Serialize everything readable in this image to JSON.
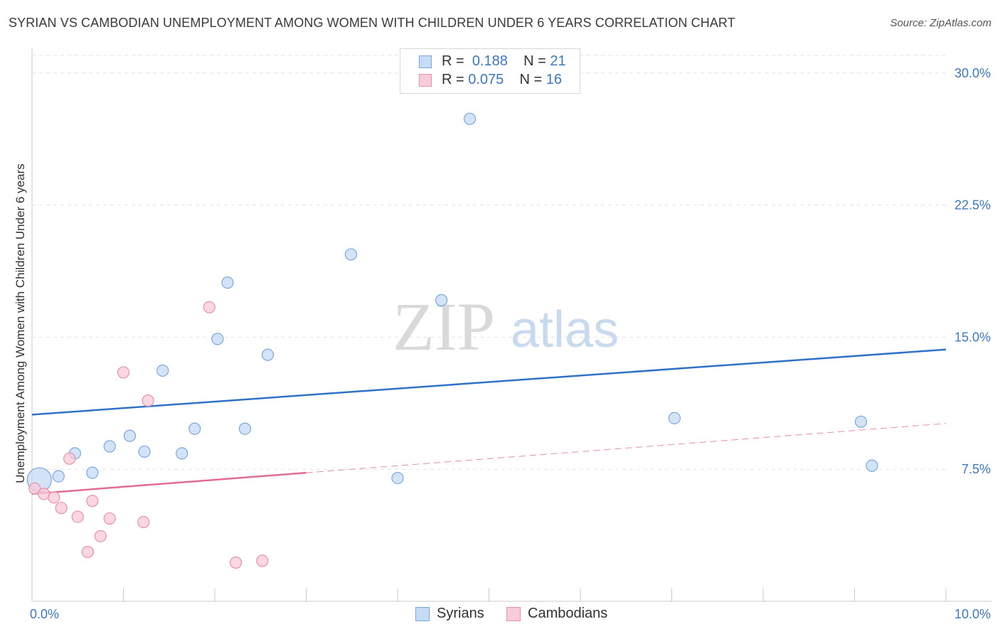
{
  "title": "SYRIAN VS CAMBODIAN UNEMPLOYMENT AMONG WOMEN WITH CHILDREN UNDER 6 YEARS CORRELATION CHART",
  "source": "Source: ZipAtlas.com",
  "watermark": {
    "zip": "ZIP",
    "atlas": "atlas"
  },
  "stats": {
    "syrians": {
      "r_label": "R =",
      "r_value": "0.188",
      "n_label": "N =",
      "n_value": "21"
    },
    "cambodians": {
      "r_label": "R =",
      "r_value": "0.075",
      "n_label": "N =",
      "n_value": "16"
    }
  },
  "legend": {
    "syrians": "Syrians",
    "cambodians": "Cambodians"
  },
  "colors": {
    "syrians_fill": "#c6dbf5",
    "syrians_stroke": "#7aa7dc",
    "syrians_line": "#2f72c8",
    "cambodians_fill": "#f9cad8",
    "cambodians_stroke": "#e891ad",
    "cambodians_line": "#e06d97",
    "grid": "#e3e3e3",
    "axis_text": "#3b78c4"
  },
  "chart_data": {
    "type": "scatter",
    "title": "SYRIAN VS CAMBODIAN UNEMPLOYMENT AMONG WOMEN WITH CHILDREN UNDER 6 YEARS CORRELATION CHART",
    "xlabel": "",
    "ylabel": "Unemployment Among Women with Children Under 6 years",
    "xlim": [
      0,
      10
    ],
    "ylim": [
      0,
      31
    ],
    "x_tick_labels": [
      {
        "value": 0,
        "label": "0.0%"
      },
      {
        "value": 10,
        "label": "10.0%"
      }
    ],
    "y_ticks": [
      {
        "value": 7.5,
        "label": "7.5%"
      },
      {
        "value": 15,
        "label": "15.0%"
      },
      {
        "value": 22.5,
        "label": "22.5%"
      },
      {
        "value": 30,
        "label": "30.0%"
      }
    ],
    "x_minor_ticks": [
      1,
      2,
      3,
      4,
      5,
      6,
      7,
      8,
      9,
      10
    ],
    "series": [
      {
        "name": "Syrians",
        "points": [
          {
            "x": 0.08,
            "y": 6.9,
            "big": true
          },
          {
            "x": 0.29,
            "y": 7.1
          },
          {
            "x": 0.47,
            "y": 8.4
          },
          {
            "x": 0.66,
            "y": 7.3
          },
          {
            "x": 0.85,
            "y": 8.8
          },
          {
            "x": 1.07,
            "y": 9.4
          },
          {
            "x": 1.23,
            "y": 8.5
          },
          {
            "x": 1.43,
            "y": 13.1
          },
          {
            "x": 1.64,
            "y": 8.4
          },
          {
            "x": 1.78,
            "y": 9.8
          },
          {
            "x": 2.03,
            "y": 14.9
          },
          {
            "x": 2.14,
            "y": 18.1
          },
          {
            "x": 2.33,
            "y": 9.8
          },
          {
            "x": 2.58,
            "y": 14.0
          },
          {
            "x": 3.49,
            "y": 19.7
          },
          {
            "x": 4.0,
            "y": 7.0
          },
          {
            "x": 4.48,
            "y": 17.1
          },
          {
            "x": 4.79,
            "y": 27.4
          },
          {
            "x": 7.03,
            "y": 10.4
          },
          {
            "x": 9.07,
            "y": 10.2
          },
          {
            "x": 9.19,
            "y": 7.7
          }
        ],
        "trend": {
          "x1": 0,
          "y1": 10.6,
          "x2": 10,
          "y2": 14.3,
          "dashed_from": null
        }
      },
      {
        "name": "Cambodians",
        "points": [
          {
            "x": 0.03,
            "y": 6.4
          },
          {
            "x": 0.13,
            "y": 6.1
          },
          {
            "x": 0.24,
            "y": 5.9
          },
          {
            "x": 0.32,
            "y": 5.3
          },
          {
            "x": 0.41,
            "y": 8.1
          },
          {
            "x": 0.5,
            "y": 4.8
          },
          {
            "x": 0.61,
            "y": 2.8
          },
          {
            "x": 0.66,
            "y": 5.7
          },
          {
            "x": 0.75,
            "y": 3.7
          },
          {
            "x": 0.85,
            "y": 4.7
          },
          {
            "x": 1.0,
            "y": 13.0
          },
          {
            "x": 1.22,
            "y": 4.5
          },
          {
            "x": 1.27,
            "y": 11.4
          },
          {
            "x": 1.94,
            "y": 16.7
          },
          {
            "x": 2.23,
            "y": 2.2
          },
          {
            "x": 2.52,
            "y": 2.3
          }
        ],
        "trend": {
          "x1": 0,
          "y1": 6.1,
          "x2": 10,
          "y2": 10.1,
          "dashed_from": 3.0
        }
      }
    ]
  }
}
